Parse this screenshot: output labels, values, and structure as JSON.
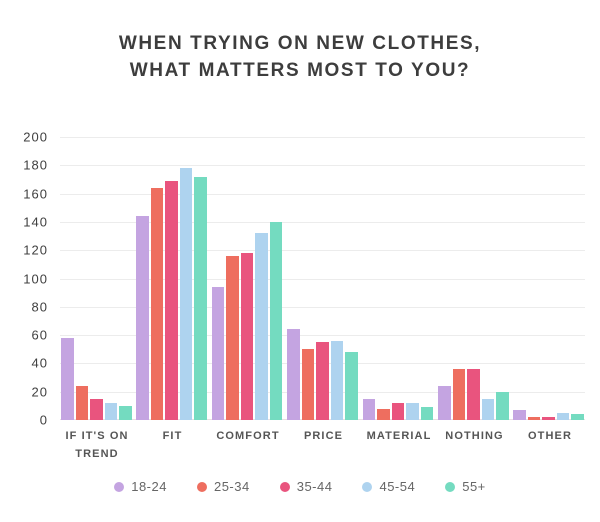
{
  "title": {
    "line1": "WHEN TRYING ON NEW CLOTHES,",
    "line2": "WHAT MATTERS MOST TO YOU?"
  },
  "chart_data": {
    "type": "bar",
    "title": "WHEN TRYING ON NEW CLOTHES, WHAT MATTERS MOST TO YOU?",
    "categories": [
      "IF IT'S ON TREND",
      "FIT",
      "COMFORT",
      "PRICE",
      "MATERIAL",
      "NOTHING",
      "OTHER"
    ],
    "categories_wrapped": [
      "IF IT'S ON\nTREND",
      "FIT",
      "COMFORT",
      "PRICE",
      "MATERIAL",
      "NOTHING",
      "OTHER"
    ],
    "series": [
      {
        "name": "18-24",
        "color": "#c4a4e1",
        "values": [
          58,
          144,
          94,
          64,
          15,
          24,
          7
        ]
      },
      {
        "name": "25-34",
        "color": "#ee6e5f",
        "values": [
          24,
          164,
          116,
          50,
          8,
          36,
          2
        ]
      },
      {
        "name": "35-44",
        "color": "#e9547e",
        "values": [
          15,
          169,
          118,
          55,
          12,
          36,
          2
        ]
      },
      {
        "name": "45-54",
        "color": "#aed3ef",
        "values": [
          12,
          178,
          132,
          56,
          12,
          15,
          5
        ]
      },
      {
        "name": "55+",
        "color": "#74dbc0",
        "values": [
          10,
          172,
          140,
          48,
          9,
          20,
          4
        ]
      }
    ],
    "xlabel": "",
    "ylabel": "",
    "ylim": [
      0,
      200
    ],
    "ytick_step": 20,
    "grid": true,
    "legend_position": "bottom",
    "background_color": "#ffffff",
    "title_color": "#3d3d3d"
  }
}
